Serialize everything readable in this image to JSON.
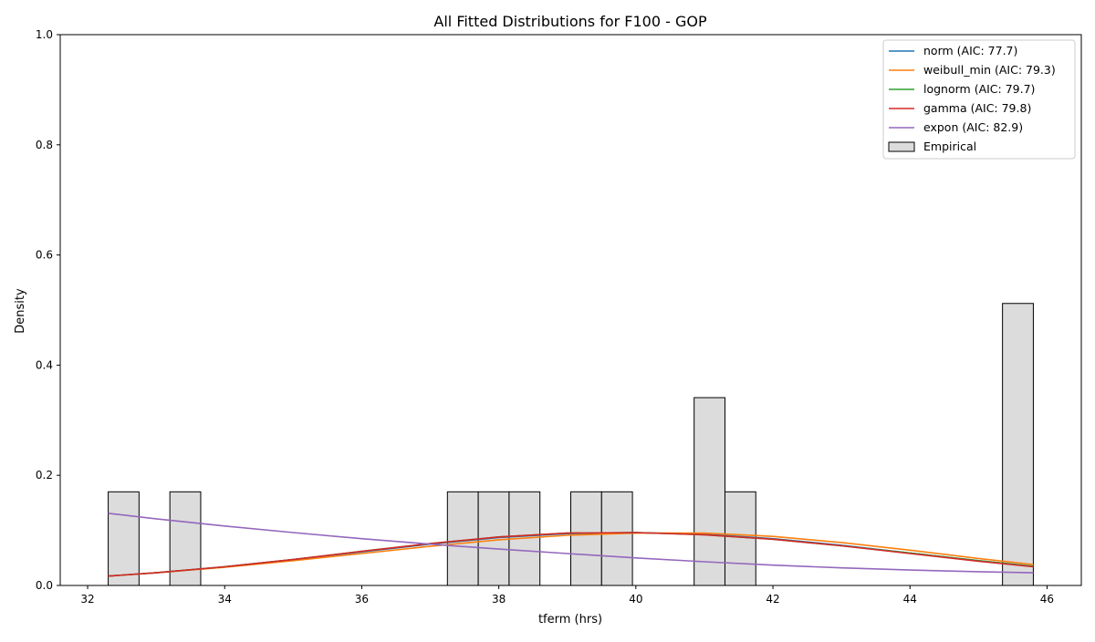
{
  "chart_data": {
    "type": "histogram+line",
    "title": "All Fitted Distributions for F100 - GOP",
    "xlabel": "tferm (hrs)",
    "ylabel": "Density",
    "xlim": [
      31.6,
      46.5
    ],
    "ylim": [
      0.0,
      1.0
    ],
    "xticks": [
      32,
      34,
      36,
      38,
      40,
      42,
      44,
      46
    ],
    "yticks": [
      0.0,
      0.2,
      0.4,
      0.6,
      0.8,
      1.0
    ],
    "xtick_labels": [
      "32",
      "34",
      "36",
      "38",
      "40",
      "42",
      "44",
      "46"
    ],
    "ytick_labels": [
      "0.0",
      "0.2",
      "0.4",
      "0.6",
      "0.8",
      "1.0"
    ],
    "grid": false,
    "legend_position": "top-right",
    "histogram": {
      "name": "Empirical",
      "color": "#dcdcdc",
      "edge_color": "#000000",
      "bars": [
        {
          "x0": 32.3,
          "x1": 32.75,
          "density": 0.17
        },
        {
          "x0": 33.2,
          "x1": 33.65,
          "density": 0.17
        },
        {
          "x0": 37.25,
          "x1": 37.7,
          "density": 0.17
        },
        {
          "x0": 37.7,
          "x1": 38.15,
          "density": 0.17
        },
        {
          "x0": 38.15,
          "x1": 38.6,
          "density": 0.17
        },
        {
          "x0": 39.05,
          "x1": 39.5,
          "density": 0.17
        },
        {
          "x0": 39.5,
          "x1": 39.95,
          "density": 0.17
        },
        {
          "x0": 40.85,
          "x1": 41.3,
          "density": 0.341
        },
        {
          "x0": 41.3,
          "x1": 41.75,
          "density": 0.17
        },
        {
          "x0": 45.35,
          "x1": 45.8,
          "density": 0.512
        }
      ]
    },
    "series": [
      {
        "name": "norm (AIC: 77.7)",
        "color": "#1f77b4",
        "x": [
          32.3,
          33.0,
          34.0,
          35.0,
          36.0,
          37.0,
          38.0,
          39.0,
          40.0,
          41.0,
          42.0,
          43.0,
          44.0,
          45.0,
          45.8
        ],
        "y": [
          0.017,
          0.023,
          0.034,
          0.047,
          0.061,
          0.075,
          0.087,
          0.094,
          0.096,
          0.093,
          0.085,
          0.073,
          0.059,
          0.045,
          0.035
        ]
      },
      {
        "name": "weibull_min (AIC: 79.3)",
        "color": "#ff7f0e",
        "x": [
          32.3,
          33.0,
          34.0,
          35.0,
          36.0,
          37.0,
          38.0,
          39.0,
          40.0,
          41.0,
          42.0,
          43.0,
          44.0,
          45.0,
          45.8
        ],
        "y": [
          0.017,
          0.023,
          0.033,
          0.045,
          0.058,
          0.071,
          0.083,
          0.091,
          0.095,
          0.095,
          0.089,
          0.078,
          0.064,
          0.049,
          0.038
        ]
      },
      {
        "name": "lognorm (AIC: 79.7)",
        "color": "#2ca02c",
        "x": [
          32.3,
          33.0,
          34.0,
          35.0,
          36.0,
          37.0,
          38.0,
          39.0,
          40.0,
          41.0,
          42.0,
          43.0,
          44.0,
          45.0,
          45.8
        ],
        "y": [
          0.017,
          0.023,
          0.034,
          0.047,
          0.062,
          0.076,
          0.088,
          0.095,
          0.096,
          0.092,
          0.084,
          0.072,
          0.059,
          0.045,
          0.035
        ]
      },
      {
        "name": "gamma (AIC: 79.8)",
        "color": "#d62728",
        "x": [
          32.3,
          33.0,
          34.0,
          35.0,
          36.0,
          37.0,
          38.0,
          39.0,
          40.0,
          41.0,
          42.0,
          43.0,
          44.0,
          45.0,
          45.8
        ],
        "y": [
          0.017,
          0.023,
          0.034,
          0.047,
          0.062,
          0.076,
          0.088,
          0.095,
          0.096,
          0.092,
          0.084,
          0.072,
          0.058,
          0.044,
          0.034
        ]
      },
      {
        "name": "expon (AIC: 82.9)",
        "color": "#9467bd",
        "x": [
          32.3,
          33.0,
          34.0,
          35.0,
          36.0,
          37.0,
          38.0,
          39.0,
          40.0,
          41.0,
          42.0,
          43.0,
          44.0,
          45.0,
          45.8
        ],
        "y": [
          0.131,
          0.121,
          0.108,
          0.096,
          0.085,
          0.075,
          0.066,
          0.058,
          0.05,
          0.043,
          0.037,
          0.032,
          0.028,
          0.025,
          0.023
        ]
      }
    ]
  }
}
